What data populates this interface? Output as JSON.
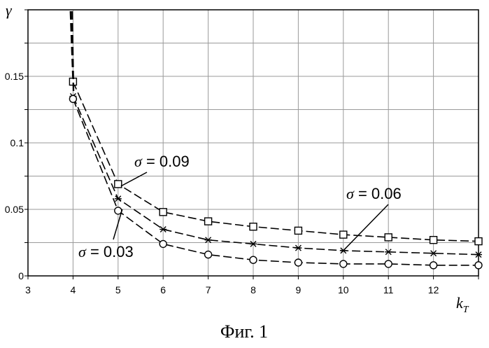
{
  "chart_data": {
    "type": "line",
    "title": "",
    "xlabel": "k_T",
    "ylabel": "γ",
    "x": [
      4,
      5,
      6,
      7,
      8,
      9,
      10,
      11,
      12,
      13
    ],
    "xlim": [
      3,
      13
    ],
    "ylim": [
      0,
      0.2
    ],
    "xticks": [
      3,
      4,
      5,
      6,
      7,
      8,
      9,
      10,
      11,
      12
    ],
    "yticks": [
      0,
      0.05,
      0.1,
      0.15
    ],
    "ytick_labels": [
      "0",
      "0.05",
      "0.1",
      "0.15"
    ],
    "grid": true,
    "series": [
      {
        "name": "σ = 0.09",
        "marker": "square",
        "values": [
          0.146,
          0.069,
          0.048,
          0.041,
          0.037,
          0.034,
          0.031,
          0.029,
          0.027,
          0.026
        ]
      },
      {
        "name": "σ = 0.06",
        "marker": "star",
        "values": [
          0.135,
          0.058,
          0.035,
          0.027,
          0.024,
          0.021,
          0.019,
          0.018,
          0.017,
          0.016
        ]
      },
      {
        "name": "σ = 0.03",
        "marker": "circle",
        "values": [
          0.133,
          0.049,
          0.024,
          0.016,
          0.012,
          0.01,
          0.009,
          0.009,
          0.008,
          0.008
        ]
      }
    ],
    "annotations": [
      {
        "text_symbol": "σ",
        "text_rest": " = 0.09",
        "series": 0,
        "point_x": 5
      },
      {
        "text_symbol": "σ",
        "text_rest": " = 0.06",
        "series": 1,
        "point_x": 10
      },
      {
        "text_symbol": "σ",
        "text_rest": " = 0.03",
        "series": 2,
        "point_x": 5
      }
    ]
  },
  "caption": "Фиг. 1"
}
